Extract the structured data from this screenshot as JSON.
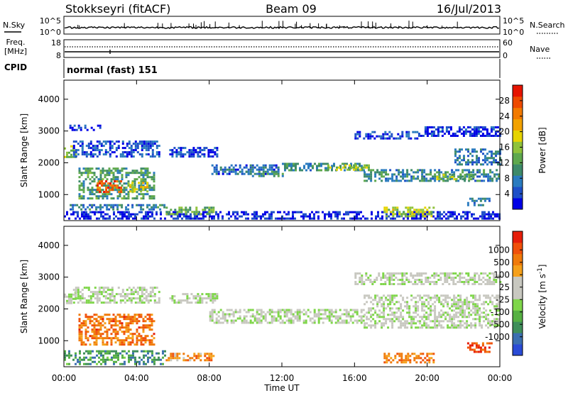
{
  "header": {
    "station": "Stokkseyri (fitACF)",
    "beam": "Beam 09",
    "date": "16/Jul/2013"
  },
  "nsky_panel": {
    "left_label": "N.Sky",
    "right_label": "N.Search",
    "left_ticks": [
      "10^5",
      "10^0"
    ],
    "right_ticks": [
      "10^5",
      "10^0"
    ]
  },
  "freq_panel": {
    "left_label_1": "Freq.",
    "left_label_2": "[MHz]",
    "left_ticks": [
      "18",
      "8"
    ],
    "right_label": "Nave",
    "right_ticks": [
      "60",
      "0"
    ]
  },
  "cpid_panel": {
    "label": "CPID",
    "mode_text": "normal (fast) 151"
  },
  "x_axis": {
    "ticks": [
      "00:00",
      "04:00",
      "08:00",
      "12:00",
      "16:00",
      "20:00",
      "00:00"
    ],
    "title": "Time UT"
  },
  "chart_data": [
    {
      "type": "heatmap",
      "panel": "power",
      "ylabel": "Slant Range [km]",
      "yticks": [
        1000,
        2000,
        3000,
        4000
      ],
      "ylim": [
        180,
        4600
      ],
      "xlim": [
        0,
        24
      ],
      "colorbar": {
        "label": "Power [dB]",
        "ticks": [
          "4",
          "8",
          "12",
          "16",
          "20",
          "24",
          "28"
        ],
        "colors": [
          "#0000e6",
          "#1e4fc8",
          "#2a7bbf",
          "#3d8a6a",
          "#5ea84d",
          "#8fc23a",
          "#e6d400",
          "#f2a200",
          "#f27a00",
          "#ee4a00",
          "#e61400"
        ]
      },
      "regions": [
        {
          "t0": 0.0,
          "t1": 0.6,
          "r0": 2150,
          "r1": 2550,
          "level": 0.45
        },
        {
          "t0": 0.5,
          "t1": 5.2,
          "r0": 2200,
          "r1": 2700,
          "level": 0.15
        },
        {
          "t0": 0.3,
          "t1": 2.0,
          "r0": 3000,
          "r1": 3200,
          "level": 0.08
        },
        {
          "t0": 5.8,
          "t1": 8.4,
          "r0": 2200,
          "r1": 2500,
          "level": 0.12
        },
        {
          "t0": 0.8,
          "t1": 5.0,
          "r0": 850,
          "r1": 1850,
          "level": 0.35
        },
        {
          "t0": 1.8,
          "t1": 3.2,
          "r0": 1100,
          "r1": 1450,
          "level": 0.85
        },
        {
          "t0": 3.6,
          "t1": 4.6,
          "r0": 1100,
          "r1": 1400,
          "level": 0.6
        },
        {
          "t0": 0.0,
          "t1": 24.0,
          "r0": 250,
          "r1": 480,
          "level": 0.06
        },
        {
          "t0": 0.2,
          "t1": 5.5,
          "r0": 560,
          "r1": 700,
          "level": 0.25
        },
        {
          "t0": 5.6,
          "t1": 8.2,
          "r0": 380,
          "r1": 620,
          "level": 0.42
        },
        {
          "t0": 8.0,
          "t1": 11.8,
          "r0": 1650,
          "r1": 1950,
          "level": 0.18
        },
        {
          "t0": 10.0,
          "t1": 12.0,
          "r0": 1550,
          "r1": 1750,
          "level": 0.32
        },
        {
          "t0": 12.0,
          "t1": 16.5,
          "r0": 1750,
          "r1": 2000,
          "level": 0.3
        },
        {
          "t0": 14.5,
          "t1": 16.8,
          "r0": 1800,
          "r1": 1950,
          "level": 0.5
        },
        {
          "t0": 16.5,
          "t1": 24.0,
          "r0": 1400,
          "r1": 1800,
          "level": 0.28
        },
        {
          "t0": 20.5,
          "t1": 22.5,
          "r0": 1450,
          "r1": 1650,
          "level": 0.45
        },
        {
          "t0": 21.5,
          "t1": 24.0,
          "r0": 1950,
          "r1": 2450,
          "level": 0.22
        },
        {
          "t0": 16.0,
          "t1": 19.5,
          "r0": 2750,
          "r1": 3000,
          "level": 0.12
        },
        {
          "t0": 19.5,
          "t1": 24.0,
          "r0": 2850,
          "r1": 3150,
          "level": 0.08
        },
        {
          "t0": 17.6,
          "t1": 20.4,
          "r0": 350,
          "r1": 620,
          "level": 0.52
        },
        {
          "t0": 22.2,
          "t1": 23.4,
          "r0": 650,
          "r1": 900,
          "level": 0.25
        }
      ]
    },
    {
      "type": "heatmap",
      "panel": "velocity",
      "ylabel": "Slant Range [km]",
      "yticks": [
        1000,
        2000,
        3000,
        4000
      ],
      "ylim": [
        180,
        4600
      ],
      "xlim": [
        0,
        24
      ],
      "colorbar": {
        "label": "Velocity [m s^-1]",
        "ticks": [
          "1000",
          "500",
          "100",
          "25",
          "-25",
          "-100",
          "-500",
          "-1000"
        ],
        "colors": [
          "#2a4bd6",
          "#3b6fb0",
          "#3f8f5a",
          "#56b043",
          "#7fd64a",
          "#c8c8c0",
          "#c8c8c0",
          "#f5a01a",
          "#f07a0a",
          "#f0500a",
          "#e61e0a"
        ]
      },
      "regions": [
        {
          "t0": 0.0,
          "t1": 0.6,
          "r0": 2150,
          "r1": 2550,
          "level": 0.5
        },
        {
          "t0": 0.5,
          "t1": 5.2,
          "r0": 2200,
          "r1": 2700,
          "level": 0.5
        },
        {
          "t0": 5.8,
          "t1": 8.4,
          "r0": 2200,
          "r1": 2500,
          "level": 0.5
        },
        {
          "t0": 0.8,
          "t1": 5.0,
          "r0": 850,
          "r1": 1850,
          "level": 0.8
        },
        {
          "t0": 0.0,
          "t1": 5.6,
          "r0": 250,
          "r1": 700,
          "level": 0.25
        },
        {
          "t0": 5.6,
          "t1": 8.2,
          "r0": 380,
          "r1": 620,
          "level": 0.72
        },
        {
          "t0": 8.0,
          "t1": 16.5,
          "r0": 1550,
          "r1": 2000,
          "level": 0.5
        },
        {
          "t0": 16.5,
          "t1": 24.0,
          "r0": 1400,
          "r1": 2450,
          "level": 0.5
        },
        {
          "t0": 16.0,
          "t1": 24.0,
          "r0": 2750,
          "r1": 3150,
          "level": 0.5
        },
        {
          "t0": 17.6,
          "t1": 20.4,
          "r0": 350,
          "r1": 620,
          "level": 0.78
        },
        {
          "t0": 22.2,
          "t1": 23.6,
          "r0": 650,
          "r1": 950,
          "level": 0.9
        }
      ]
    }
  ]
}
